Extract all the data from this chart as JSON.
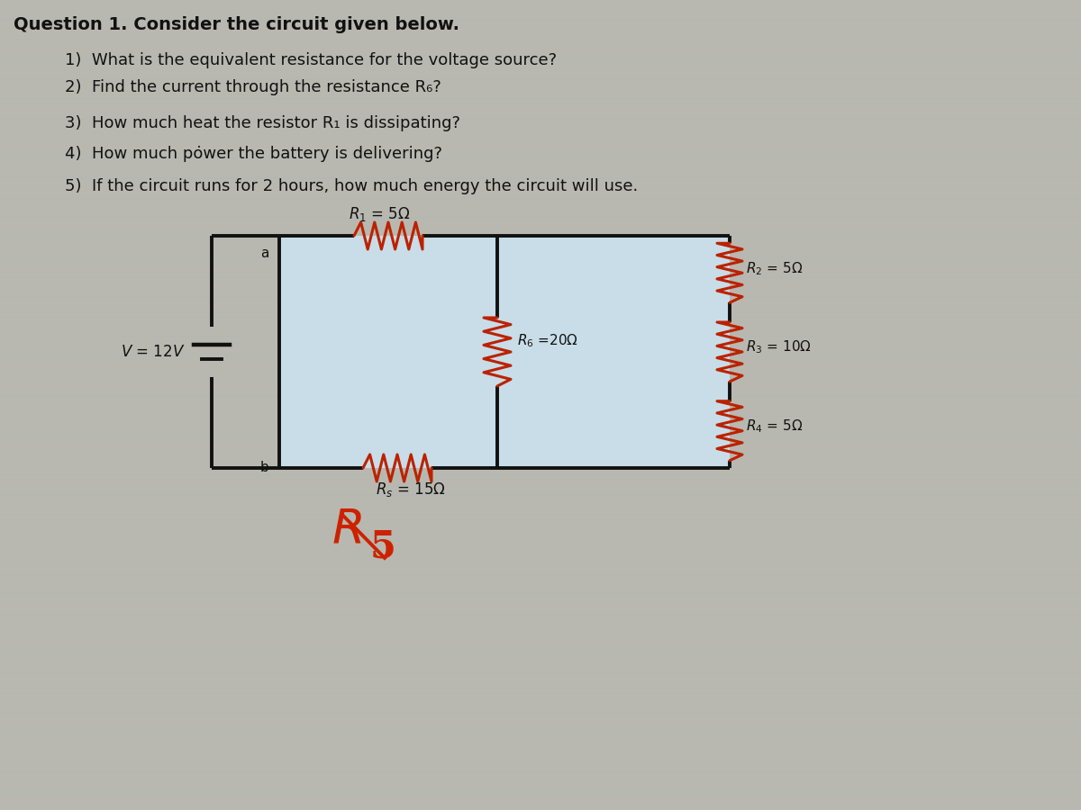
{
  "title": "Question 1. Consider the circuit given below.",
  "q1": "1)  What is the equivalent resistance for the voltage source?",
  "q2": "2)  Find the current through the resistance R₆?",
  "q3": "3)  How much heat the resistor R₁ is dissipating?",
  "q4": "4)  How much pȯwer the battery is delivering?",
  "q5": "5)  If the circuit runs for 2 hours, how much energy the circuit will use.",
  "bg_color": "#b8b8b0",
  "circuit_bg": "#c8dde8",
  "wire_color": "#111111",
  "resistor_color": "#bb2200",
  "text_color": "#111111",
  "label_color": "#111111",
  "handwritten_color": "#cc2200",
  "title_fontsize": 14,
  "q_fontsize": 13,
  "label_fontsize": 11
}
